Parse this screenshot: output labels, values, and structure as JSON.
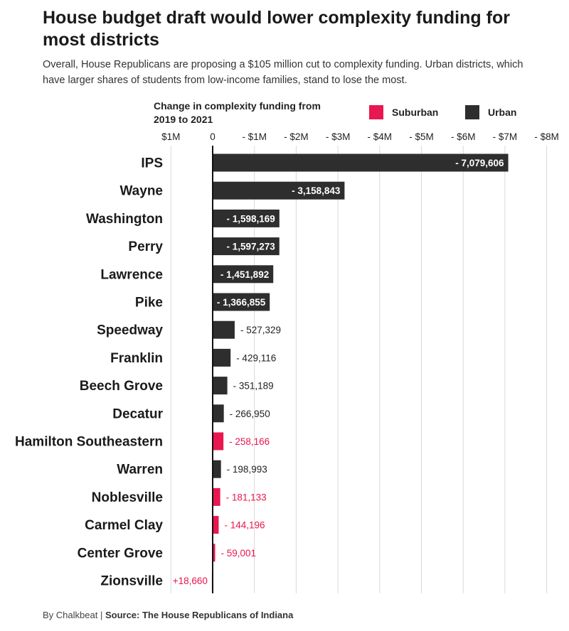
{
  "header": {
    "title": "House budget draft would lower complexity funding for most districts",
    "subtitle": "Overall, House Republicans are proposing a $105 million cut to complexity funding. Urban districts, which have larger shares of students from low-income families, stand to lose the most."
  },
  "axis_title": "Change in complexity funding from 2019 to 2021",
  "legend": {
    "suburban_label": "Suburban",
    "urban_label": "Urban"
  },
  "colors": {
    "suburban": "#e8174f",
    "urban": "#2e2e2e",
    "gridline": "#d9d9d9",
    "zero_line": "#111111"
  },
  "footer": {
    "byline": "By Chalkbeat",
    "source": "Source: The House Republicans of Indiana"
  },
  "chart_data": {
    "type": "bar",
    "orientation": "horizontal",
    "xlabel": "Change in complexity funding from 2019 to 2021",
    "ylabel": "",
    "xlim": [
      1000000,
      -8000000
    ],
    "axis_reversed": true,
    "grid": true,
    "legend_placement": "top-right",
    "ticks": [
      {
        "value": 1000000,
        "label": "$1M"
      },
      {
        "value": 0,
        "label": "0"
      },
      {
        "value": -1000000,
        "label": "- $1M"
      },
      {
        "value": -2000000,
        "label": "- $2M"
      },
      {
        "value": -3000000,
        "label": "- $3M"
      },
      {
        "value": -4000000,
        "label": "- $4M"
      },
      {
        "value": -5000000,
        "label": "- $5M"
      },
      {
        "value": -6000000,
        "label": "- $6M"
      },
      {
        "value": -7000000,
        "label": "- $7M"
      },
      {
        "value": -8000000,
        "label": "- $8M"
      }
    ],
    "series_types": [
      "Suburban",
      "Urban"
    ],
    "rows": [
      {
        "district": "IPS",
        "type": "Urban",
        "value": -7079606,
        "label": "- 7,079,606"
      },
      {
        "district": "Wayne",
        "type": "Urban",
        "value": -3158843,
        "label": "- 3,158,843"
      },
      {
        "district": "Washington",
        "type": "Urban",
        "value": -1598169,
        "label": "- 1,598,169"
      },
      {
        "district": "Perry",
        "type": "Urban",
        "value": -1597273,
        "label": "- 1,597,273"
      },
      {
        "district": "Lawrence",
        "type": "Urban",
        "value": -1451892,
        "label": "- 1,451,892"
      },
      {
        "district": "Pike",
        "type": "Urban",
        "value": -1366855,
        "label": "- 1,366,855"
      },
      {
        "district": "Speedway",
        "type": "Urban",
        "value": -527329,
        "label": "- 527,329"
      },
      {
        "district": "Franklin",
        "type": "Urban",
        "value": -429116,
        "label": "- 429,116"
      },
      {
        "district": "Beech Grove",
        "type": "Urban",
        "value": -351189,
        "label": "- 351,189"
      },
      {
        "district": "Decatur",
        "type": "Urban",
        "value": -266950,
        "label": "- 266,950"
      },
      {
        "district": "Hamilton Southeastern",
        "type": "Suburban",
        "value": -258166,
        "label": "- 258,166"
      },
      {
        "district": "Warren",
        "type": "Urban",
        "value": -198993,
        "label": "- 198,993"
      },
      {
        "district": "Noblesville",
        "type": "Suburban",
        "value": -181133,
        "label": "- 181,133"
      },
      {
        "district": "Carmel Clay",
        "type": "Suburban",
        "value": -144196,
        "label": "- 144,196"
      },
      {
        "district": "Center Grove",
        "type": "Suburban",
        "value": -59001,
        "label": "- 59,001"
      },
      {
        "district": "Zionsville",
        "type": "Suburban",
        "value": 18660,
        "label": "+18,660"
      }
    ]
  }
}
